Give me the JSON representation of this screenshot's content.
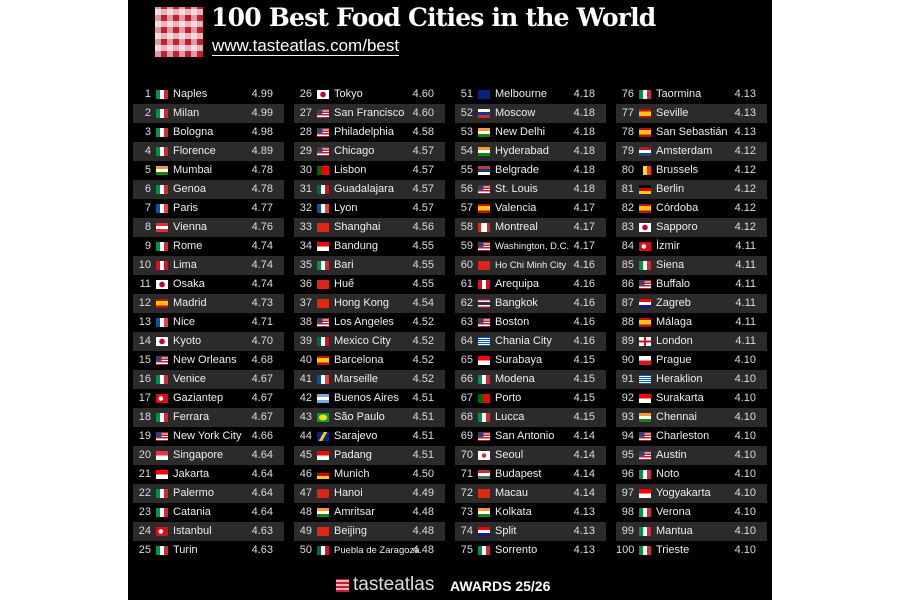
{
  "header": {
    "title": "100 Best Food Cities in the World",
    "url": "www.tasteatlas.com/best"
  },
  "footer": {
    "brand": "tasteatlas",
    "awards": "AWARDS 25/26"
  },
  "colors": {
    "background": "#000000",
    "row_alt": "#2b2b2b",
    "logo_red": "#c0202e"
  },
  "rankings": [
    {
      "rank": "1",
      "country": "it",
      "city": "Naples",
      "score": "4.99"
    },
    {
      "rank": "2",
      "country": "it",
      "city": "Milan",
      "score": "4.99"
    },
    {
      "rank": "3",
      "country": "it",
      "city": "Bologna",
      "score": "4.98"
    },
    {
      "rank": "4",
      "country": "it",
      "city": "Florence",
      "score": "4.89"
    },
    {
      "rank": "5",
      "country": "in",
      "city": "Mumbai",
      "score": "4.78"
    },
    {
      "rank": "6",
      "country": "it",
      "city": "Genoa",
      "score": "4.78"
    },
    {
      "rank": "7",
      "country": "fr",
      "city": "Paris",
      "score": "4.77"
    },
    {
      "rank": "8",
      "country": "at",
      "city": "Vienna",
      "score": "4.76"
    },
    {
      "rank": "9",
      "country": "it",
      "city": "Rome",
      "score": "4.74"
    },
    {
      "rank": "10",
      "country": "pe",
      "city": "Lima",
      "score": "4.74"
    },
    {
      "rank": "11",
      "country": "jp",
      "city": "Osaka",
      "score": "4.74"
    },
    {
      "rank": "12",
      "country": "es",
      "city": "Madrid",
      "score": "4.73"
    },
    {
      "rank": "13",
      "country": "fr",
      "city": "Nice",
      "score": "4.71"
    },
    {
      "rank": "14",
      "country": "jp",
      "city": "Kyoto",
      "score": "4.70"
    },
    {
      "rank": "15",
      "country": "us",
      "city": "New Orleans",
      "score": "4.68"
    },
    {
      "rank": "16",
      "country": "it",
      "city": "Venice",
      "score": "4.67"
    },
    {
      "rank": "17",
      "country": "tr",
      "city": "Gaziantep",
      "score": "4.67"
    },
    {
      "rank": "18",
      "country": "it",
      "city": "Ferrara",
      "score": "4.67"
    },
    {
      "rank": "19",
      "country": "us",
      "city": "New York City",
      "score": "4.66"
    },
    {
      "rank": "20",
      "country": "sg",
      "city": "Singapore",
      "score": "4.64"
    },
    {
      "rank": "21",
      "country": "id",
      "city": "Jakarta",
      "score": "4.64"
    },
    {
      "rank": "22",
      "country": "it",
      "city": "Palermo",
      "score": "4.64"
    },
    {
      "rank": "23",
      "country": "it",
      "city": "Catania",
      "score": "4.64"
    },
    {
      "rank": "24",
      "country": "tr",
      "city": "Istanbul",
      "score": "4.63"
    },
    {
      "rank": "25",
      "country": "it",
      "city": "Turin",
      "score": "4.63"
    },
    {
      "rank": "26",
      "country": "jp",
      "city": "Tokyo",
      "score": "4.60"
    },
    {
      "rank": "27",
      "country": "us",
      "city": "San Francisco",
      "score": "4.60"
    },
    {
      "rank": "28",
      "country": "us",
      "city": "Philadelphia",
      "score": "4.58"
    },
    {
      "rank": "29",
      "country": "us",
      "city": "Chicago",
      "score": "4.57"
    },
    {
      "rank": "30",
      "country": "pt",
      "city": "Lisbon",
      "score": "4.57"
    },
    {
      "rank": "31",
      "country": "mx",
      "city": "Guadalajara",
      "score": "4.57"
    },
    {
      "rank": "32",
      "country": "fr",
      "city": "Lyon",
      "score": "4.57"
    },
    {
      "rank": "33",
      "country": "cn",
      "city": "Shanghai",
      "score": "4.56"
    },
    {
      "rank": "34",
      "country": "id",
      "city": "Bandung",
      "score": "4.55"
    },
    {
      "rank": "35",
      "country": "it",
      "city": "Bari",
      "score": "4.55"
    },
    {
      "rank": "36",
      "country": "vn",
      "city": "Huế",
      "score": "4.55"
    },
    {
      "rank": "37",
      "country": "cn",
      "city": "Hong Kong",
      "score": "4.54"
    },
    {
      "rank": "38",
      "country": "us",
      "city": "Los Angeles",
      "score": "4.52"
    },
    {
      "rank": "39",
      "country": "mx",
      "city": "Mexico City",
      "score": "4.52"
    },
    {
      "rank": "40",
      "country": "es",
      "city": "Barcelona",
      "score": "4.52"
    },
    {
      "rank": "41",
      "country": "fr",
      "city": "Marseille",
      "score": "4.52"
    },
    {
      "rank": "42",
      "country": "ar",
      "city": "Buenos Aires",
      "score": "4.51"
    },
    {
      "rank": "43",
      "country": "br",
      "city": "São Paulo",
      "score": "4.51"
    },
    {
      "rank": "44",
      "country": "ba",
      "city": "Sarajevo",
      "score": "4.51"
    },
    {
      "rank": "45",
      "country": "id",
      "city": "Padang",
      "score": "4.51"
    },
    {
      "rank": "46",
      "country": "de",
      "city": "Munich",
      "score": "4.50"
    },
    {
      "rank": "47",
      "country": "vn",
      "city": "Hanoi",
      "score": "4.49"
    },
    {
      "rank": "48",
      "country": "in",
      "city": "Amritsar",
      "score": "4.48"
    },
    {
      "rank": "49",
      "country": "cn",
      "city": "Beijing",
      "score": "4.48"
    },
    {
      "rank": "50",
      "country": "mx",
      "city": "Puebla de Zaragoza",
      "score": "4.48"
    },
    {
      "rank": "51",
      "country": "au",
      "city": "Melbourne",
      "score": "4.18"
    },
    {
      "rank": "52",
      "country": "ru",
      "city": "Moscow",
      "score": "4.18"
    },
    {
      "rank": "53",
      "country": "in",
      "city": "New Delhi",
      "score": "4.18"
    },
    {
      "rank": "54",
      "country": "in",
      "city": "Hyderabad",
      "score": "4.18"
    },
    {
      "rank": "55",
      "country": "rs",
      "city": "Belgrade",
      "score": "4.18"
    },
    {
      "rank": "56",
      "country": "us",
      "city": "St. Louis",
      "score": "4.18"
    },
    {
      "rank": "57",
      "country": "es",
      "city": "Valencia",
      "score": "4.17"
    },
    {
      "rank": "58",
      "country": "ca",
      "city": "Montreal",
      "score": "4.17"
    },
    {
      "rank": "59",
      "country": "us",
      "city": "Washington, D.C.",
      "score": "4.17"
    },
    {
      "rank": "60",
      "country": "vn",
      "city": "Ho Chi Minh City",
      "score": "4.16"
    },
    {
      "rank": "61",
      "country": "pe",
      "city": "Arequipa",
      "score": "4.16"
    },
    {
      "rank": "62",
      "country": "th",
      "city": "Bangkok",
      "score": "4.16"
    },
    {
      "rank": "63",
      "country": "us",
      "city": "Boston",
      "score": "4.16"
    },
    {
      "rank": "64",
      "country": "gr",
      "city": "Chania City",
      "score": "4.16"
    },
    {
      "rank": "65",
      "country": "id",
      "city": "Surabaya",
      "score": "4.15"
    },
    {
      "rank": "66",
      "country": "it",
      "city": "Modena",
      "score": "4.15"
    },
    {
      "rank": "67",
      "country": "pt",
      "city": "Porto",
      "score": "4.15"
    },
    {
      "rank": "68",
      "country": "it",
      "city": "Lucca",
      "score": "4.15"
    },
    {
      "rank": "69",
      "country": "us",
      "city": "San Antonio",
      "score": "4.14"
    },
    {
      "rank": "70",
      "country": "kr",
      "city": "Seoul",
      "score": "4.14"
    },
    {
      "rank": "71",
      "country": "hu",
      "city": "Budapest",
      "score": "4.14"
    },
    {
      "rank": "72",
      "country": "cn",
      "city": "Macau",
      "score": "4.14"
    },
    {
      "rank": "73",
      "country": "in",
      "city": "Kolkata",
      "score": "4.13"
    },
    {
      "rank": "74",
      "country": "hr",
      "city": "Split",
      "score": "4.13"
    },
    {
      "rank": "75",
      "country": "it",
      "city": "Sorrento",
      "score": "4.13"
    },
    {
      "rank": "76",
      "country": "it",
      "city": "Taormina",
      "score": "4.13"
    },
    {
      "rank": "77",
      "country": "es",
      "city": "Seville",
      "score": "4.13"
    },
    {
      "rank": "78",
      "country": "es",
      "city": "San Sebastián",
      "score": "4.13"
    },
    {
      "rank": "79",
      "country": "nl",
      "city": "Amsterdam",
      "score": "4.12"
    },
    {
      "rank": "80",
      "country": "be",
      "city": "Brussels",
      "score": "4.12"
    },
    {
      "rank": "81",
      "country": "de",
      "city": "Berlin",
      "score": "4.12"
    },
    {
      "rank": "82",
      "country": "es",
      "city": "Córdoba",
      "score": "4.12"
    },
    {
      "rank": "83",
      "country": "jp",
      "city": "Sapporo",
      "score": "4.12"
    },
    {
      "rank": "84",
      "country": "tr",
      "city": "İzmir",
      "score": "4.11"
    },
    {
      "rank": "85",
      "country": "it",
      "city": "Siena",
      "score": "4.11"
    },
    {
      "rank": "86",
      "country": "us",
      "city": "Buffalo",
      "score": "4.11"
    },
    {
      "rank": "87",
      "country": "hr",
      "city": "Zagreb",
      "score": "4.11"
    },
    {
      "rank": "88",
      "country": "es",
      "city": "Málaga",
      "score": "4.11"
    },
    {
      "rank": "89",
      "country": "gb-eng",
      "city": "London",
      "score": "4.11"
    },
    {
      "rank": "90",
      "country": "cz",
      "city": "Prague",
      "score": "4.10"
    },
    {
      "rank": "91",
      "country": "gr",
      "city": "Heraklion",
      "score": "4.10"
    },
    {
      "rank": "92",
      "country": "id",
      "city": "Surakarta",
      "score": "4.10"
    },
    {
      "rank": "93",
      "country": "in",
      "city": "Chennai",
      "score": "4.10"
    },
    {
      "rank": "94",
      "country": "us",
      "city": "Charleston",
      "score": "4.10"
    },
    {
      "rank": "95",
      "country": "us",
      "city": "Austin",
      "score": "4.10"
    },
    {
      "rank": "96",
      "country": "it",
      "city": "Noto",
      "score": "4.10"
    },
    {
      "rank": "97",
      "country": "id",
      "city": "Yogyakarta",
      "score": "4.10"
    },
    {
      "rank": "98",
      "country": "it",
      "city": "Verona",
      "score": "4.10"
    },
    {
      "rank": "99",
      "country": "it",
      "city": "Mantua",
      "score": "4.10"
    },
    {
      "rank": "100",
      "country": "it",
      "city": "Trieste",
      "score": "4.10"
    }
  ]
}
